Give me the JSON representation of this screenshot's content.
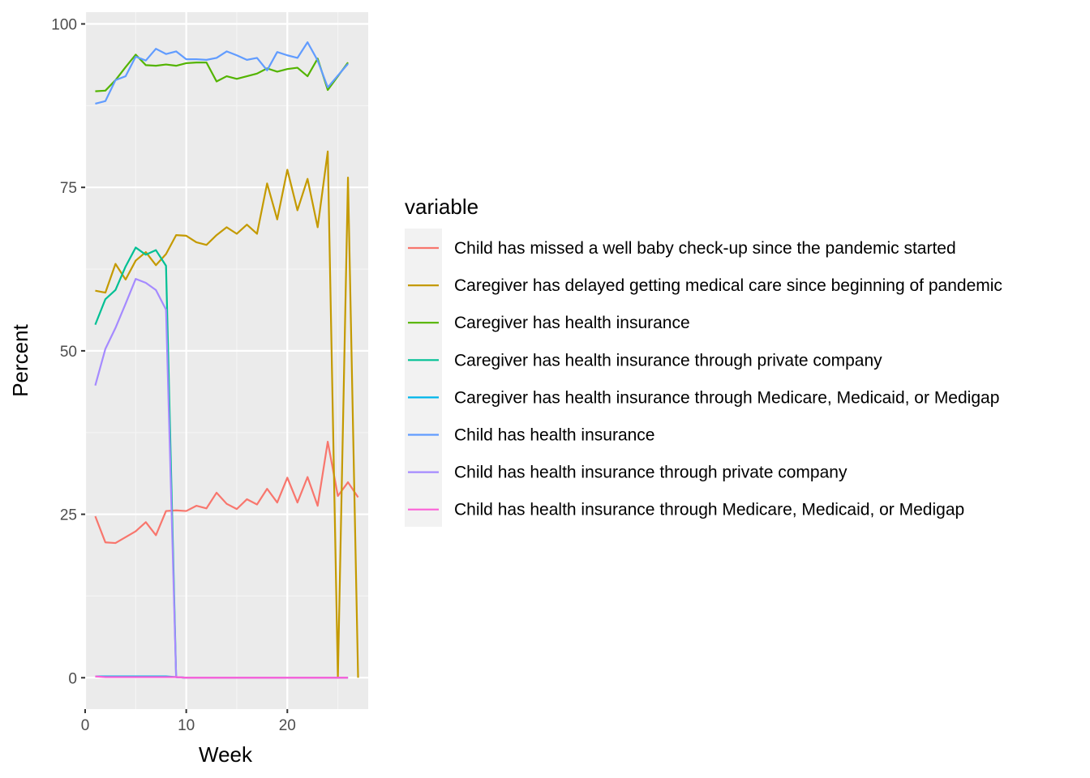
{
  "chart_data": {
    "type": "line",
    "xlabel": "Week",
    "ylabel": "Percent",
    "xlim": [
      0,
      28
    ],
    "ylim": [
      -4.8,
      101.8
    ],
    "x_ticks": [
      0,
      10,
      20
    ],
    "y_ticks": [
      0,
      25,
      50,
      75,
      100
    ],
    "grid": true,
    "legend": {
      "title": "variable",
      "position": "right"
    },
    "series": [
      {
        "name": "Child has missed a well baby check-up since the pandemic started",
        "color": "#F8766D",
        "x": [
          1,
          2,
          3,
          4,
          5,
          6,
          7,
          8,
          9,
          10,
          11,
          12,
          13,
          14,
          15,
          16,
          17,
          18,
          19,
          20,
          21,
          22,
          23,
          24,
          25,
          26,
          27
        ],
        "y": [
          24.7,
          20.7,
          20.6,
          21.5,
          22.4,
          23.8,
          21.8,
          25.5,
          25.6,
          25.5,
          26.3,
          25.9,
          28.3,
          26.6,
          25.8,
          27.3,
          26.5,
          28.9,
          26.8,
          30.6,
          26.8,
          30.7,
          26.3,
          36.1,
          27.8,
          29.9,
          27.6
        ]
      },
      {
        "name": "Caregiver has delayed getting medical care since beginning of pandemic",
        "color": "#C49A00",
        "x": [
          1,
          2,
          3,
          4,
          5,
          6,
          7,
          8,
          9,
          10,
          11,
          12,
          13,
          14,
          15,
          16,
          17,
          18,
          19,
          20,
          21,
          22,
          23,
          24,
          25,
          26,
          27
        ],
        "y": [
          59.2,
          58.9,
          63.3,
          60.9,
          63.8,
          65.1,
          63.1,
          64.8,
          67.7,
          67.6,
          66.6,
          66.2,
          67.7,
          68.9,
          67.9,
          69.3,
          67.9,
          75.6,
          70.1,
          77.7,
          71.5,
          76.3,
          68.9,
          80.5,
          0,
          76.5,
          0
        ]
      },
      {
        "name": "Caregiver has health insurance",
        "color": "#53B400",
        "x": [
          1,
          2,
          3,
          4,
          5,
          6,
          7,
          8,
          9,
          10,
          11,
          12,
          13,
          14,
          15,
          16,
          17,
          18,
          19,
          20,
          21,
          22,
          23,
          24,
          25,
          26
        ],
        "y": [
          89.7,
          89.8,
          91.4,
          93.4,
          95.3,
          93.7,
          93.6,
          93.8,
          93.6,
          94.0,
          94.1,
          94.1,
          91.2,
          92.0,
          91.6,
          92.0,
          92.4,
          93.2,
          92.7,
          93.1,
          93.3,
          92.0,
          94.7,
          89.9,
          92.0,
          94.1
        ]
      },
      {
        "name": "Caregiver has health insurance through private company",
        "color": "#00C094",
        "x": [
          1,
          2,
          3,
          4,
          5,
          6,
          7,
          8,
          9,
          10,
          11,
          12,
          13,
          14,
          15,
          16,
          17,
          18,
          19,
          20,
          21,
          22,
          23,
          24,
          25,
          26
        ],
        "y": [
          54.0,
          57.9,
          59.3,
          62.9,
          65.8,
          64.7,
          65.4,
          63.0,
          0.1,
          0,
          0,
          0,
          0,
          0,
          0,
          0,
          0,
          0,
          0,
          0,
          0,
          0,
          0,
          0,
          0,
          0
        ]
      },
      {
        "name": "Caregiver has health insurance through Medicare, Medicaid, or Medigap",
        "color": "#00B6EB",
        "x": [
          1,
          2,
          3,
          4,
          5,
          6,
          7,
          8,
          9,
          10,
          11,
          12,
          13,
          14,
          15,
          16,
          17,
          18,
          19,
          20,
          21,
          22,
          23,
          24,
          25,
          26
        ],
        "y": [
          0.2,
          0.2,
          0.2,
          0.2,
          0.2,
          0.2,
          0.2,
          0.2,
          0.1,
          0,
          0,
          0,
          0,
          0,
          0,
          0,
          0,
          0,
          0,
          0,
          0,
          0,
          0,
          0,
          0,
          0
        ]
      },
      {
        "name": "Child has health insurance",
        "color": "#619CFF",
        "x": [
          1,
          2,
          3,
          4,
          5,
          6,
          7,
          8,
          9,
          10,
          11,
          12,
          13,
          14,
          15,
          16,
          17,
          18,
          19,
          20,
          21,
          22,
          23,
          24,
          25,
          26
        ],
        "y": [
          87.8,
          88.2,
          91.4,
          92.0,
          95.0,
          94.4,
          96.2,
          95.4,
          95.8,
          94.6,
          94.6,
          94.5,
          94.8,
          95.8,
          95.2,
          94.5,
          94.8,
          92.9,
          95.7,
          95.2,
          94.8,
          97.2,
          94.4,
          90.3,
          92.1,
          93.9
        ]
      },
      {
        "name": "Child has health insurance through private company",
        "color": "#A58AFF",
        "x": [
          1,
          2,
          3,
          4,
          5,
          6,
          7,
          8,
          9,
          10,
          11,
          12,
          13,
          14,
          15,
          16,
          17,
          18,
          19,
          20,
          21,
          22,
          23,
          24,
          25,
          26
        ],
        "y": [
          44.7,
          50.3,
          53.5,
          57.2,
          61.0,
          60.4,
          59.3,
          56.3,
          0.1,
          0,
          0,
          0,
          0,
          0,
          0,
          0,
          0,
          0,
          0,
          0,
          0,
          0,
          0,
          0,
          0,
          0
        ]
      },
      {
        "name": "Child has health insurance through Medicare, Medicaid, or Medigap",
        "color": "#FB61D7",
        "x": [
          1,
          2,
          3,
          4,
          5,
          6,
          7,
          8,
          9,
          10,
          11,
          12,
          13,
          14,
          15,
          16,
          17,
          18,
          19,
          20,
          21,
          22,
          23,
          24,
          25,
          26
        ],
        "y": [
          0.2,
          0.1,
          0.1,
          0.1,
          0.1,
          0.1,
          0.1,
          0.1,
          0.1,
          0,
          0,
          0,
          0,
          0,
          0,
          0,
          0,
          0,
          0,
          0,
          0,
          0,
          0,
          0,
          0,
          0
        ]
      }
    ]
  },
  "colors": {
    "panel_background": "#EBEBEB",
    "grid_major": "#FFFFFF",
    "grid_minor": "#F5F5F5",
    "legend_key_background": "#F2F2F2",
    "tick_color": "#333333"
  }
}
